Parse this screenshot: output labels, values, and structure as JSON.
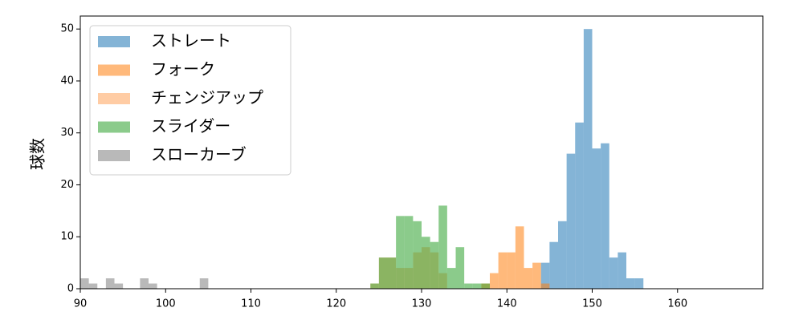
{
  "chart_data": {
    "type": "histogram",
    "y_label": "球数",
    "xlim": [
      90,
      170
    ],
    "ylim": [
      0,
      52.5
    ],
    "xticks": [
      90,
      100,
      110,
      120,
      130,
      140,
      150,
      160
    ],
    "yticks": [
      0,
      10,
      20,
      30,
      40,
      50
    ],
    "legend": "upper left",
    "opacity": 0.55,
    "series": [
      {
        "name": "ストレート",
        "color": "#1f77b4",
        "bins": [
          144,
          145,
          146,
          147,
          148,
          149,
          150,
          151,
          152,
          153,
          154,
          155,
          156
        ],
        "values": [
          5,
          9,
          13,
          26,
          32,
          50,
          27,
          28,
          6,
          7,
          2,
          2
        ]
      },
      {
        "name": "フォーク",
        "color": "#ff7f0e",
        "bins": [
          137,
          138,
          139,
          140,
          141,
          142,
          143,
          144,
          145
        ],
        "values": [
          1,
          3,
          7,
          7,
          12,
          4,
          5,
          1
        ]
      },
      {
        "name": "チェンジアップ",
        "color": "#ffa25a",
        "bins": [
          124,
          125,
          126,
          127,
          128,
          129,
          130,
          131,
          132,
          133
        ],
        "values": [
          1,
          6,
          6,
          4,
          4,
          7,
          8,
          7,
          3
        ]
      },
      {
        "name": "スライダー",
        "color": "#2ca02c",
        "bins": [
          124,
          125,
          126,
          127,
          128,
          129,
          130,
          131,
          132,
          133,
          134,
          135,
          136,
          137,
          138
        ],
        "values": [
          1,
          6,
          6,
          14,
          14,
          13,
          10,
          9,
          16,
          4,
          8,
          1,
          1,
          1
        ]
      },
      {
        "name": "スローカーブ",
        "color": "#7f7f7f",
        "bins": [
          90,
          91,
          92,
          93,
          94,
          95,
          96,
          97,
          98,
          99,
          100,
          101,
          102,
          103,
          104,
          105
        ],
        "values": [
          2,
          1,
          0,
          2,
          1,
          0,
          0,
          2,
          1,
          0,
          0,
          0,
          0,
          0,
          2
        ]
      }
    ]
  }
}
